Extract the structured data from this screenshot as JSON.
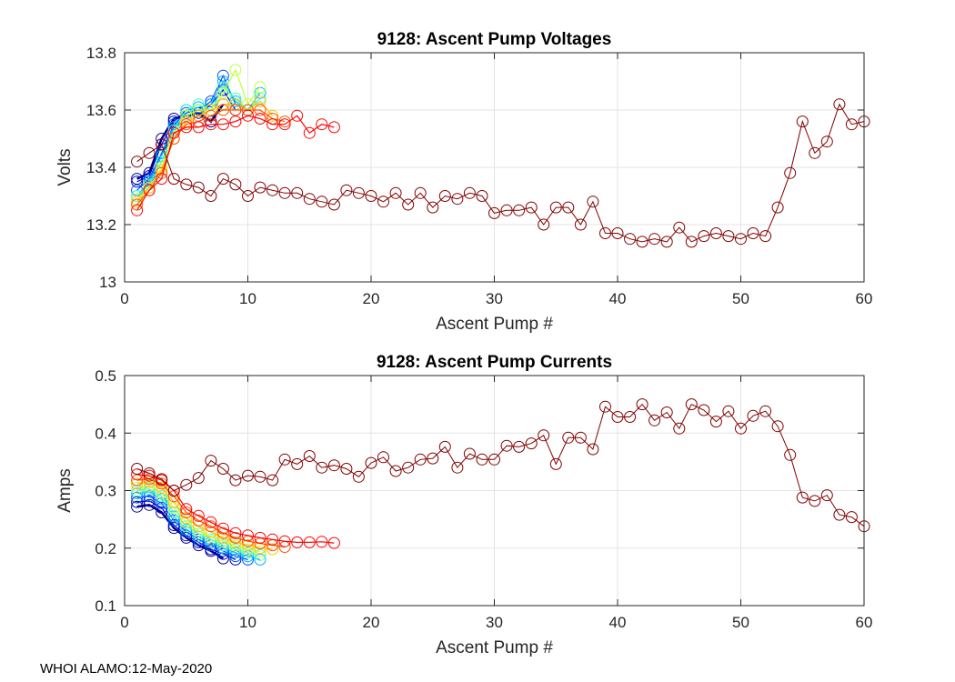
{
  "footer": "WHOI ALAMO:12-May-2020",
  "chart_data": [
    {
      "type": "line",
      "title": "9128: Ascent Pump Voltages",
      "xlabel": "Ascent Pump #",
      "ylabel": "Volts",
      "xlim": [
        0,
        60
      ],
      "ylim": [
        13,
        13.8
      ],
      "xticks": [
        0,
        10,
        20,
        30,
        40,
        50,
        60
      ],
      "yticks": [
        13,
        13.2,
        13.4,
        13.6,
        13.8
      ],
      "ytick_labels": [
        "13",
        "13.2",
        "13.4",
        "13.6",
        "13.8"
      ],
      "grid": true,
      "marker": "open-circle",
      "colormap": "jet (early profiles dark blue to late profiles red, final profile dark red)",
      "series": [
        {
          "color": "#000080",
          "x": [
            1,
            2,
            3,
            4,
            5,
            6,
            7,
            8
          ],
          "y": [
            13.36,
            13.38,
            13.5,
            13.57,
            13.58,
            13.59,
            13.56,
            13.62
          ]
        },
        {
          "color": "#0000d0",
          "x": [
            1,
            2,
            3,
            4,
            5,
            6,
            7,
            8,
            9
          ],
          "y": [
            13.35,
            13.37,
            13.48,
            13.56,
            13.6,
            13.58,
            13.62,
            13.67,
            13.6
          ]
        },
        {
          "color": "#0050ff",
          "x": [
            1,
            2,
            3,
            4,
            5,
            6,
            7,
            8,
            9,
            10
          ],
          "y": [
            13.32,
            13.36,
            13.45,
            13.55,
            13.59,
            13.6,
            13.63,
            13.72,
            13.62,
            13.6
          ]
        },
        {
          "color": "#00b0ff",
          "x": [
            1,
            2,
            3,
            4,
            5,
            6,
            7,
            8,
            9,
            10,
            11
          ],
          "y": [
            13.3,
            13.35,
            13.44,
            13.54,
            13.6,
            13.61,
            13.62,
            13.7,
            13.63,
            13.6,
            13.66
          ]
        },
        {
          "color": "#40ffc0",
          "x": [
            1,
            2,
            3,
            4,
            5,
            6,
            7,
            8,
            9,
            10,
            11
          ],
          "y": [
            13.3,
            13.34,
            13.42,
            13.53,
            13.6,
            13.62,
            13.6,
            13.68,
            13.64,
            13.6,
            13.64
          ]
        },
        {
          "color": "#c0ff40",
          "x": [
            1,
            2,
            3,
            4,
            5,
            6,
            7,
            8,
            9,
            10,
            11
          ],
          "y": [
            13.29,
            13.33,
            13.4,
            13.52,
            13.58,
            13.6,
            13.6,
            13.66,
            13.74,
            13.62,
            13.68
          ]
        },
        {
          "color": "#ffc000",
          "x": [
            1,
            2,
            3,
            4,
            5,
            6,
            7,
            8,
            9,
            10,
            11,
            12
          ],
          "y": [
            13.28,
            13.33,
            13.39,
            13.5,
            13.56,
            13.58,
            13.6,
            13.62,
            13.62,
            13.6,
            13.63,
            13.58
          ]
        },
        {
          "color": "#ff5000",
          "x": [
            1,
            2,
            3,
            4,
            5,
            6,
            7,
            8,
            9,
            10,
            11,
            12,
            13
          ],
          "y": [
            13.27,
            13.32,
            13.38,
            13.5,
            13.55,
            13.56,
            13.58,
            13.6,
            13.6,
            13.6,
            13.6,
            13.57,
            13.56
          ]
        },
        {
          "color": "#ff0000",
          "x": [
            1,
            2,
            3,
            4,
            5,
            6,
            7,
            8,
            9,
            10,
            11,
            12,
            13,
            14,
            15,
            16,
            17
          ],
          "y": [
            13.25,
            13.32,
            13.36,
            13.52,
            13.54,
            13.54,
            13.55,
            13.55,
            13.56,
            13.58,
            13.57,
            13.55,
            13.55,
            13.58,
            13.52,
            13.55,
            13.54
          ]
        },
        {
          "color": "#800000",
          "x": [
            1,
            2,
            3,
            4,
            5,
            6,
            7,
            8,
            9,
            10,
            11,
            12,
            13,
            14,
            15,
            16,
            17,
            18,
            19,
            20,
            21,
            22,
            23,
            24,
            25,
            26,
            27,
            28,
            29,
            30,
            31,
            32,
            33,
            34,
            35,
            36,
            37,
            38,
            39,
            40,
            41,
            42,
            43,
            44,
            45,
            46,
            47,
            48,
            49,
            50,
            51,
            52,
            53,
            54,
            55,
            56,
            57,
            58,
            59,
            60
          ],
          "y": [
            13.42,
            13.45,
            13.48,
            13.36,
            13.34,
            13.33,
            13.3,
            13.36,
            13.34,
            13.3,
            13.33,
            13.32,
            13.31,
            13.31,
            13.29,
            13.28,
            13.27,
            13.32,
            13.31,
            13.3,
            13.28,
            13.31,
            13.27,
            13.31,
            13.26,
            13.3,
            13.29,
            13.31,
            13.3,
            13.24,
            13.25,
            13.25,
            13.26,
            13.2,
            13.26,
            13.26,
            13.2,
            13.28,
            13.17,
            13.17,
            13.15,
            13.14,
            13.15,
            13.14,
            13.19,
            13.14,
            13.16,
            13.17,
            13.16,
            13.15,
            13.17,
            13.16,
            13.26,
            13.38,
            13.56,
            13.45,
            13.49,
            13.62,
            13.55,
            13.56
          ]
        }
      ]
    },
    {
      "type": "line",
      "title": "9128: Ascent Pump Currents",
      "xlabel": "Ascent Pump #",
      "ylabel": "Amps",
      "xlim": [
        0,
        60
      ],
      "ylim": [
        0.1,
        0.5
      ],
      "xticks": [
        0,
        10,
        20,
        30,
        40,
        50,
        60
      ],
      "yticks": [
        0.1,
        0.2,
        0.3,
        0.4,
        0.5
      ],
      "ytick_labels": [
        "0.1",
        "0.2",
        "0.3",
        "0.4",
        "0.5"
      ],
      "grid": true,
      "marker": "open-circle",
      "colormap": "jet (early profiles dark blue to late profiles red, final profile dark red)",
      "series": [
        {
          "color": "#000080",
          "x": [
            1,
            2,
            3,
            4,
            5,
            6,
            7,
            8
          ],
          "y": [
            0.272,
            0.275,
            0.262,
            0.235,
            0.218,
            0.205,
            0.195,
            0.182
          ]
        },
        {
          "color": "#0000d0",
          "x": [
            1,
            2,
            3,
            4,
            5,
            6,
            7,
            8,
            9
          ],
          "y": [
            0.28,
            0.282,
            0.27,
            0.24,
            0.222,
            0.21,
            0.198,
            0.19,
            0.18
          ]
        },
        {
          "color": "#0050ff",
          "x": [
            1,
            2,
            3,
            4,
            5,
            6,
            7,
            8,
            9,
            10
          ],
          "y": [
            0.288,
            0.29,
            0.278,
            0.248,
            0.228,
            0.215,
            0.205,
            0.195,
            0.186,
            0.18
          ]
        },
        {
          "color": "#00b0ff",
          "x": [
            1,
            2,
            3,
            4,
            5,
            6,
            7,
            8,
            9,
            10,
            11
          ],
          "y": [
            0.295,
            0.298,
            0.285,
            0.255,
            0.232,
            0.22,
            0.21,
            0.2,
            0.192,
            0.186,
            0.18
          ]
        },
        {
          "color": "#40ffc0",
          "x": [
            1,
            2,
            3,
            4,
            5,
            6,
            7,
            8,
            9,
            10,
            11
          ],
          "y": [
            0.3,
            0.303,
            0.29,
            0.262,
            0.238,
            0.225,
            0.215,
            0.205,
            0.198,
            0.192,
            0.188
          ]
        },
        {
          "color": "#c0ff40",
          "x": [
            1,
            2,
            3,
            4,
            5,
            6,
            7,
            8,
            9,
            10,
            11
          ],
          "y": [
            0.305,
            0.308,
            0.296,
            0.27,
            0.245,
            0.23,
            0.22,
            0.212,
            0.204,
            0.198,
            0.194
          ]
        },
        {
          "color": "#ffc000",
          "x": [
            1,
            2,
            3,
            4,
            5,
            6,
            7,
            8,
            9,
            10,
            11,
            12
          ],
          "y": [
            0.312,
            0.315,
            0.305,
            0.28,
            0.252,
            0.238,
            0.228,
            0.218,
            0.21,
            0.205,
            0.2,
            0.198
          ]
        },
        {
          "color": "#ff5000",
          "x": [
            1,
            2,
            3,
            4,
            5,
            6,
            7,
            8,
            9,
            10,
            11,
            12,
            13
          ],
          "y": [
            0.318,
            0.32,
            0.312,
            0.29,
            0.262,
            0.248,
            0.238,
            0.226,
            0.218,
            0.212,
            0.208,
            0.205,
            0.202
          ]
        },
        {
          "color": "#ff0000",
          "x": [
            1,
            2,
            3,
            4,
            5,
            6,
            7,
            8,
            9,
            10,
            11,
            12,
            13,
            14,
            15,
            16,
            17
          ],
          "y": [
            0.328,
            0.326,
            0.318,
            0.3,
            0.268,
            0.256,
            0.245,
            0.234,
            0.226,
            0.222,
            0.218,
            0.215,
            0.212,
            0.21,
            0.21,
            0.211,
            0.209
          ]
        },
        {
          "color": "#800000",
          "x": [
            1,
            2,
            3,
            4,
            5,
            6,
            7,
            8,
            9,
            10,
            11,
            12,
            13,
            14,
            15,
            16,
            17,
            18,
            19,
            20,
            21,
            22,
            23,
            24,
            25,
            26,
            27,
            28,
            29,
            30,
            31,
            32,
            33,
            34,
            35,
            36,
            37,
            38,
            39,
            40,
            41,
            42,
            43,
            44,
            45,
            46,
            47,
            48,
            49,
            50,
            51,
            52,
            53,
            54,
            55,
            56,
            57,
            58,
            59,
            60
          ],
          "y": [
            0.338,
            0.33,
            0.32,
            0.3,
            0.31,
            0.322,
            0.352,
            0.338,
            0.318,
            0.326,
            0.324,
            0.318,
            0.354,
            0.346,
            0.36,
            0.34,
            0.344,
            0.338,
            0.324,
            0.348,
            0.358,
            0.334,
            0.34,
            0.354,
            0.356,
            0.376,
            0.34,
            0.364,
            0.354,
            0.354,
            0.378,
            0.376,
            0.382,
            0.396,
            0.346,
            0.392,
            0.392,
            0.372,
            0.446,
            0.428,
            0.428,
            0.45,
            0.422,
            0.436,
            0.408,
            0.45,
            0.44,
            0.42,
            0.438,
            0.408,
            0.43,
            0.438,
            0.412,
            0.362,
            0.288,
            0.282,
            0.292,
            0.258,
            0.254,
            0.238
          ]
        }
      ]
    }
  ]
}
